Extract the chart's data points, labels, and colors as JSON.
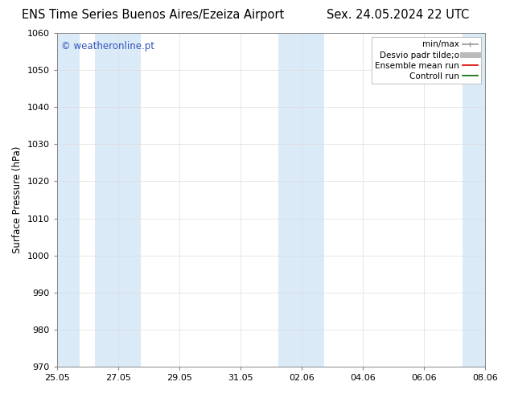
{
  "title_left": "ENS Time Series Buenos Aires/Ezeiza Airport",
  "title_right": "Sex. 24.05.2024 22 UTC",
  "ylabel": "Surface Pressure (hPa)",
  "ylim": [
    970,
    1060
  ],
  "yticks": [
    970,
    980,
    990,
    1000,
    1010,
    1020,
    1030,
    1040,
    1050,
    1060
  ],
  "xtick_labels": [
    "25.05",
    "27.05",
    "29.05",
    "31.05",
    "02.06",
    "04.06",
    "06.06",
    "08.06"
  ],
  "xtick_positions": [
    0,
    2,
    4,
    6,
    8,
    10,
    12,
    14
  ],
  "xlim": [
    0,
    14
  ],
  "background_color": "#ffffff",
  "plot_bg_color": "#ffffff",
  "shaded_bands": [
    {
      "x_start": 0.0,
      "x_end": 0.75,
      "color": "#daeaf7"
    },
    {
      "x_start": 1.25,
      "x_end": 2.75,
      "color": "#daeaf7"
    },
    {
      "x_start": 7.25,
      "x_end": 8.75,
      "color": "#daeaf7"
    },
    {
      "x_start": 13.25,
      "x_end": 14.0,
      "color": "#daeaf7"
    }
  ],
  "watermark_text": "© weatheronline.pt",
  "watermark_color": "#3355bb",
  "legend_entries": [
    {
      "label": "min/max",
      "color": "#999999",
      "lw": 1.2
    },
    {
      "label": "Desvio padr tilde;o",
      "color": "#bbbbbb",
      "lw": 5
    },
    {
      "label": "Ensemble mean run",
      "color": "#dd0000",
      "lw": 1.2
    },
    {
      "label": "Controll run",
      "color": "#006600",
      "lw": 1.2
    }
  ],
  "title_fontsize": 10.5,
  "ylabel_fontsize": 8.5,
  "tick_fontsize": 8,
  "legend_fontsize": 7.5,
  "watermark_fontsize": 8.5
}
